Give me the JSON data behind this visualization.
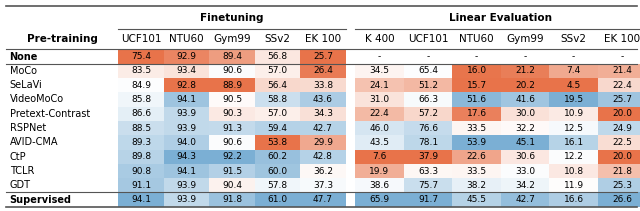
{
  "col_headers_ft": [
    "UCF101",
    "NTU60",
    "Gym99",
    "SSv2",
    "EK 100"
  ],
  "col_headers_le": [
    "K 400",
    "UCF101",
    "NTU60",
    "Gym99",
    "SSv2",
    "EK 100"
  ],
  "group_headers": [
    "Finetuning",
    "Linear Evaluation"
  ],
  "row_labels": [
    "None",
    "MoCo",
    "SeLaVi",
    "VideoMoCo",
    "Pretext-Contrast",
    "RSPNet",
    "AVID-CMA",
    "CtP",
    "TCLR",
    "GDT",
    "Supervised"
  ],
  "ft_data": [
    [
      75.4,
      92.9,
      89.4,
      56.8,
      25.7
    ],
    [
      83.5,
      93.4,
      90.6,
      57.0,
      26.4
    ],
    [
      84.9,
      92.8,
      88.9,
      56.4,
      33.8
    ],
    [
      85.8,
      94.1,
      90.5,
      58.8,
      43.6
    ],
    [
      86.6,
      93.9,
      90.3,
      57.0,
      34.3
    ],
    [
      88.5,
      93.9,
      91.3,
      59.4,
      42.7
    ],
    [
      89.3,
      94.0,
      90.6,
      53.8,
      29.9
    ],
    [
      89.8,
      94.3,
      92.2,
      60.2,
      42.8
    ],
    [
      90.8,
      94.1,
      91.5,
      60.0,
      36.2
    ],
    [
      91.1,
      93.9,
      90.4,
      57.8,
      37.3
    ],
    [
      94.1,
      93.9,
      91.8,
      61.0,
      47.7
    ]
  ],
  "le_data": [
    [
      null,
      null,
      null,
      null,
      null,
      null
    ],
    [
      34.5,
      65.4,
      16.0,
      21.2,
      7.4,
      21.4
    ],
    [
      24.1,
      51.2,
      15.7,
      20.2,
      4.5,
      22.4
    ],
    [
      31.0,
      66.3,
      51.6,
      41.6,
      19.5,
      25.7
    ],
    [
      22.4,
      57.2,
      17.6,
      30.0,
      10.9,
      20.0
    ],
    [
      46.0,
      76.6,
      33.5,
      32.2,
      12.5,
      24.9
    ],
    [
      43.5,
      78.1,
      53.9,
      45.1,
      16.1,
      22.5
    ],
    [
      7.6,
      37.9,
      22.6,
      30.6,
      12.2,
      20.0
    ],
    [
      19.9,
      63.3,
      33.5,
      33.0,
      10.8,
      21.8
    ],
    [
      38.6,
      75.7,
      38.2,
      34.2,
      11.9,
      25.3
    ],
    [
      65.9,
      91.7,
      45.5,
      42.7,
      16.6,
      26.6
    ]
  ],
  "cell_fontsize": 6.5,
  "row_label_fontsize": 7,
  "header_fontsize": 7.5,
  "separator_color": "#555555"
}
